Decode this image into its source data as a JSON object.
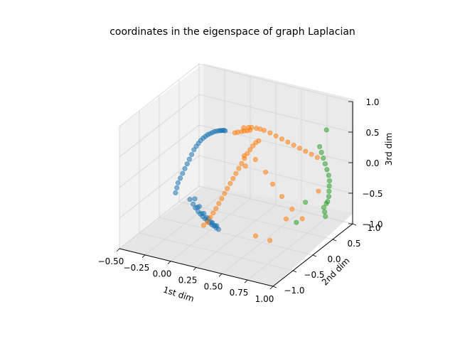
{
  "chart_data": {
    "type": "scatter",
    "projection": "3d",
    "title": "coordinates in the eigenspace of graph Laplacian",
    "xlabel": "1st dim",
    "ylabel": "2nd dim",
    "zlabel": "3rd dim",
    "xlim": [
      -0.5,
      1.0
    ],
    "ylim": [
      -1.0,
      1.0
    ],
    "zlim": [
      -1.0,
      1.0
    ],
    "xticks": [
      -0.5,
      -0.25,
      0.0,
      0.25,
      0.5,
      0.75,
      1.0
    ],
    "yticks": [
      -1.0,
      -0.5,
      0.0,
      0.5,
      1.0
    ],
    "zticks": [
      -1.0,
      -0.5,
      0.0,
      0.5,
      1.0
    ],
    "xtick_labels": [
      "−0.50",
      "−0.25",
      "0.00",
      "0.25",
      "0.50",
      "0.75",
      "1.00"
    ],
    "ytick_labels": [
      "−1.0",
      "−0.5",
      "0.0",
      "0.5",
      "1.0"
    ],
    "ztick_labels": [
      "−1.0",
      "−0.5",
      "0.0",
      "0.5",
      "1.0"
    ],
    "grid": true,
    "colors": {
      "series1": "#1f77b4",
      "series2": "#ff7f0e",
      "series3": "#2ca02c",
      "pane": "#f2f2f2",
      "grid": "#d4d4d4"
    },
    "series": [
      {
        "color": "#1f77b4",
        "x": [
          -0.38,
          -0.36,
          -0.34,
          -0.31,
          -0.28,
          -0.25,
          -0.22,
          -0.19,
          -0.16,
          -0.13,
          -0.1,
          -0.07,
          -0.04,
          -0.01,
          0.02,
          0.05,
          0.08,
          0.11,
          0.14,
          0.17,
          0.2,
          0.22,
          0.24,
          0.26,
          0.28,
          0.3,
          -0.24,
          -0.2,
          -0.17,
          -0.14,
          -0.11,
          -0.08,
          -0.05,
          -0.02,
          0.01,
          0.04,
          0.07,
          0.1,
          0.13,
          -0.18,
          -0.12,
          -0.06,
          0.0,
          0.05,
          0.1,
          -0.15,
          -0.09,
          -0.03,
          0.03,
          0.08
        ],
        "y": [
          0.1,
          0.08,
          0.06,
          0.04,
          0.02,
          0.0,
          -0.02,
          -0.04,
          -0.06,
          -0.08,
          -0.1,
          -0.12,
          -0.14,
          -0.16,
          -0.18,
          -0.2,
          -0.22,
          -0.24,
          -0.26,
          -0.28,
          -0.3,
          -0.32,
          -0.34,
          -0.36,
          -0.38,
          -0.4,
          0.1,
          0.08,
          0.06,
          0.05,
          0.03,
          0.01,
          -0.01,
          -0.03,
          -0.05,
          -0.07,
          -0.09,
          -0.11,
          -0.13,
          0.07,
          0.03,
          -0.01,
          -0.05,
          -0.08,
          -0.1,
          0.06,
          0.02,
          -0.02,
          -0.06,
          -0.09
        ],
        "z": [
          -0.6,
          -0.5,
          -0.4,
          -0.3,
          -0.2,
          -0.1,
          0.0,
          0.1,
          0.2,
          0.3,
          0.38,
          0.45,
          0.52,
          0.58,
          0.63,
          0.68,
          0.72,
          0.76,
          0.8,
          0.83,
          0.86,
          0.88,
          0.9,
          0.92,
          0.94,
          0.95,
          -0.65,
          -0.7,
          -0.74,
          -0.78,
          -0.8,
          -0.82,
          -0.83,
          -0.84,
          -0.85,
          -0.86,
          -0.86,
          -0.87,
          -0.87,
          -0.6,
          -0.68,
          -0.75,
          -0.79,
          -0.82,
          -0.84,
          -0.72,
          -0.78,
          -0.8,
          -0.83,
          -0.85
        ]
      },
      {
        "color": "#ff7f0e",
        "x": [
          0.05,
          0.08,
          0.1,
          0.12,
          0.14,
          0.16,
          0.18,
          0.2,
          0.22,
          0.24,
          0.26,
          0.28,
          0.3,
          0.32,
          0.34,
          0.36,
          0.38,
          0.4,
          0.42,
          0.44,
          0.2,
          0.22,
          0.25,
          0.27,
          0.29,
          0.31,
          0.24,
          0.28,
          0.3,
          0.34,
          0.37,
          0.4,
          0.45,
          0.5,
          0.55,
          0.6,
          0.65,
          0.7,
          0.75,
          0.8,
          0.85,
          0.33,
          0.35,
          0.42,
          0.5,
          0.55,
          0.62,
          0.7,
          0.78,
          0.9,
          0.48,
          0.6,
          0.72
        ],
        "y": [
          -0.3,
          -0.28,
          -0.26,
          -0.24,
          -0.22,
          -0.2,
          -0.18,
          -0.16,
          -0.14,
          -0.12,
          -0.1,
          -0.08,
          -0.06,
          -0.04,
          -0.02,
          0.0,
          0.02,
          0.04,
          0.06,
          0.08,
          0.1,
          0.12,
          0.14,
          0.16,
          0.18,
          0.2,
          0.22,
          0.24,
          0.26,
          0.28,
          0.3,
          0.32,
          0.34,
          0.36,
          0.38,
          0.4,
          0.42,
          0.44,
          0.46,
          0.48,
          0.5,
          0.0,
          -0.02,
          0.05,
          0.1,
          0.15,
          0.2,
          0.25,
          0.3,
          0.4,
          -0.1,
          -0.05,
          0.05
        ],
        "z": [
          -0.75,
          -0.7,
          -0.62,
          -0.55,
          -0.48,
          -0.4,
          -0.32,
          -0.24,
          -0.16,
          -0.08,
          0.0,
          0.08,
          0.16,
          0.24,
          0.32,
          0.4,
          0.46,
          0.52,
          0.57,
          0.6,
          0.62,
          0.63,
          0.64,
          0.65,
          0.65,
          0.66,
          0.66,
          0.67,
          0.67,
          0.66,
          0.65,
          0.63,
          0.6,
          0.56,
          0.52,
          0.48,
          0.44,
          0.4,
          0.36,
          0.32,
          0.28,
          0.35,
          0.2,
          0.3,
          0.1,
          -0.1,
          -0.3,
          -0.5,
          -0.65,
          -0.2,
          -0.85,
          -0.9,
          -0.55
        ]
      },
      {
        "color": "#2ca02c",
        "x": [
          0.95,
          0.96,
          0.97,
          0.98,
          0.99,
          1.0,
          1.0,
          0.99,
          0.98,
          0.97,
          0.95,
          0.93,
          0.92,
          0.94,
          0.96,
          0.9,
          0.85,
          0.8
        ],
        "y": [
          0.3,
          0.32,
          0.34,
          0.36,
          0.38,
          0.4,
          0.42,
          0.44,
          0.46,
          0.48,
          0.5,
          0.52,
          0.48,
          0.45,
          0.42,
          0.6,
          0.2,
          0.1
        ],
        "z": [
          0.6,
          0.5,
          0.4,
          0.3,
          0.2,
          0.1,
          0.0,
          -0.1,
          -0.2,
          -0.3,
          -0.4,
          -0.45,
          -0.5,
          -0.55,
          -0.6,
          0.7,
          -0.3,
          -0.6
        ]
      }
    ]
  }
}
